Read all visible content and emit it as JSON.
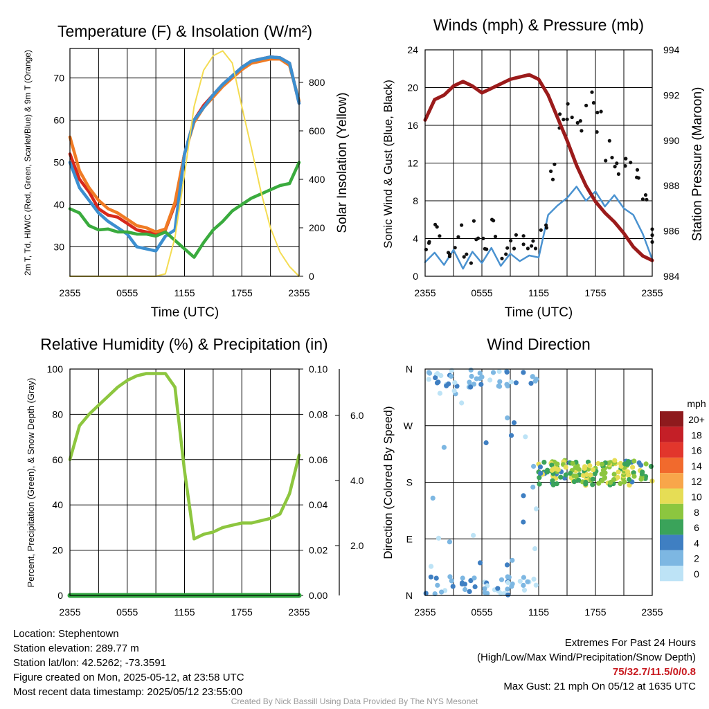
{
  "chart_data": [
    {
      "type": "line",
      "title": "Temperature (F) & Insolation (W/m²)",
      "xlabel": "Time (UTC)",
      "ylabel": "2m T, Td, HI/WC (Red, Green, Scarlet/Blue) & 9m T (Orange)",
      "y2label": "Solar Insolation (Yellow)",
      "ylim": [
        23,
        77
      ],
      "y2lim": [
        0,
        940
      ],
      "yticks": [
        "30",
        "40",
        "50",
        "60",
        "70"
      ],
      "y2ticks": [
        "0",
        "200",
        "400",
        "600",
        "800"
      ],
      "xticks": [
        "2355",
        "0555",
        "1155",
        "1755",
        "2355"
      ],
      "x": [
        0,
        1,
        2,
        3,
        4,
        5,
        6,
        7,
        8,
        9,
        10,
        11,
        12,
        13,
        14,
        15,
        16,
        17,
        18,
        19,
        20,
        21,
        22,
        23,
        24
      ],
      "series": [
        {
          "key": "t2m",
          "color": "#d8281c",
          "values": [
            52,
            46,
            43,
            39,
            37.5,
            37,
            35.5,
            34,
            33.5,
            33,
            34,
            40,
            52,
            60,
            63.5,
            66,
            68.5,
            70.5,
            72.5,
            74,
            74.5,
            75,
            74.8,
            73.5,
            64
          ]
        },
        {
          "key": "t9m",
          "color": "#f07b24",
          "values": [
            56,
            48,
            44,
            41,
            39,
            38,
            36.5,
            35,
            34.5,
            33.5,
            34.2,
            40.5,
            52,
            59.5,
            63,
            65.5,
            68,
            70,
            72,
            73.5,
            74,
            74.5,
            74.5,
            73,
            64.5
          ]
        },
        {
          "key": "hiwc",
          "color": "#3c8fd0",
          "values": [
            50,
            44,
            41,
            38,
            36,
            34.5,
            33,
            30,
            29.5,
            29,
            32.5,
            34,
            52,
            60,
            63,
            66,
            68.5,
            70.5,
            72.5,
            74,
            74.5,
            75,
            74.8,
            73.5,
            64
          ]
        },
        {
          "key": "td",
          "color": "#3aab3e",
          "values": [
            39,
            38,
            35,
            34,
            34.2,
            33.5,
            33.5,
            33,
            33,
            32.5,
            33.5,
            31.5,
            29.5,
            27.5,
            31,
            34,
            36,
            38.5,
            40,
            41.5,
            42.5,
            43.5,
            44.5,
            45,
            50
          ]
        },
        {
          "key": "solar",
          "axis": "y2",
          "color": "#f4dc52",
          "values": [
            0,
            0,
            0,
            0,
            0,
            0,
            0,
            0,
            0,
            0,
            10,
            160,
            420,
            700,
            850,
            910,
            930,
            880,
            700,
            530,
            350,
            200,
            100,
            40,
            0
          ]
        }
      ]
    },
    {
      "type": "line",
      "title": "Winds (mph) & Pressure (mb)",
      "xlabel": "Time (UTC)",
      "ylabel": "Sonic Wind & Gust (Blue, Black)",
      "y2label": "Station Pressure (Maroon)",
      "ylim": [
        0,
        24
      ],
      "y2lim": [
        984,
        994
      ],
      "yticks": [
        "0",
        "4",
        "8",
        "12",
        "16",
        "20",
        "24"
      ],
      "y2ticks": [
        "984",
        "986",
        "988",
        "990",
        "992",
        "994"
      ],
      "xticks": [
        "2355",
        "0555",
        "1155",
        "1755",
        "2355"
      ],
      "x": [
        0,
        1,
        2,
        3,
        4,
        5,
        6,
        7,
        8,
        9,
        10,
        11,
        12,
        13,
        14,
        15,
        16,
        17,
        18,
        19,
        20,
        21,
        22,
        23,
        24
      ],
      "series": [
        {
          "key": "wind",
          "color": "#4a92d0",
          "values": [
            1.5,
            2.5,
            1.2,
            2.8,
            0.8,
            2.6,
            1.4,
            3.0,
            1.1,
            2.4,
            1.6,
            2.2,
            2.0,
            6.5,
            7.5,
            8.3,
            9.5,
            8.0,
            9.0,
            7.4,
            8.6,
            7.2,
            6.5,
            4.5,
            1.8
          ]
        },
        {
          "key": "gust",
          "color": "#111111",
          "values": [
            3.5,
            4.5,
            3.2,
            4.2,
            2.2,
            4.6,
            3.3,
            4.9,
            2.6,
            4.0,
            3.4,
            3.9,
            4.2,
            11.5,
            16,
            17,
            15.5,
            19,
            16.5,
            13.5,
            12,
            13,
            11.5,
            7.5,
            4.0
          ]
        },
        {
          "key": "pressure",
          "axis": "y2",
          "color": "#9b1b1b",
          "values": [
            990.9,
            991.8,
            992.0,
            992.4,
            992.6,
            992.4,
            992.1,
            992.3,
            992.5,
            992.7,
            992.8,
            992.9,
            992.7,
            992.0,
            991.0,
            990.0,
            988.9,
            988.0,
            987.3,
            986.8,
            986.4,
            985.9,
            985.3,
            984.9,
            984.7
          ]
        }
      ]
    },
    {
      "type": "line",
      "title": "Relative Humidity (%) & Precipitation (in)",
      "ylabel": "Percent, Precipitation (Green), & Snow Depth (Gray)",
      "ylim": [
        0,
        100
      ],
      "y2lim": [
        0,
        0.1
      ],
      "yticks": [
        "0",
        "20",
        "40",
        "60",
        "80",
        "100"
      ],
      "y2ticks": [
        "0.00",
        "0.02",
        "0.04",
        "0.06",
        "0.08",
        "0.10"
      ],
      "y3ticks": [
        "2.0",
        "4.0",
        "6.0"
      ],
      "xticks": [
        "2355",
        "0555",
        "1155",
        "1755",
        "2355"
      ],
      "x": [
        0,
        1,
        2,
        3,
        4,
        5,
        6,
        7,
        8,
        9,
        10,
        11,
        12,
        13,
        14,
        15,
        16,
        17,
        18,
        19,
        20,
        21,
        22,
        23,
        24
      ],
      "series": [
        {
          "key": "rh",
          "color": "#8dc63f",
          "values": [
            60,
            75,
            80,
            84,
            88,
            92,
            95,
            97,
            98,
            98,
            98,
            92,
            55,
            25,
            27,
            28,
            30,
            31,
            32,
            32,
            33,
            34,
            36,
            45,
            62
          ]
        },
        {
          "key": "precip",
          "axis": "y2",
          "color": "#2fa33e",
          "values": [
            0,
            0,
            0,
            0,
            0,
            0,
            0,
            0,
            0,
            0,
            0,
            0,
            0,
            0,
            0,
            0,
            0,
            0,
            0,
            0,
            0,
            0,
            0,
            0,
            0
          ]
        }
      ]
    },
    {
      "type": "scatter",
      "title": "Wind Direction",
      "ylabel": "Direction (Colored By Speed)",
      "yticks": [
        "N",
        "E",
        "S",
        "W",
        "N"
      ],
      "xticks": [
        "2355",
        "0555",
        "1155",
        "1755",
        "2355"
      ],
      "ylim": [
        0,
        360
      ],
      "legend_title": "mph",
      "legend_labels": [
        "20+",
        "18",
        "16",
        "14",
        "12",
        "10",
        "8",
        "6",
        "4",
        "2",
        "0"
      ],
      "legend_colors": [
        "#8e1a1d",
        "#c41f27",
        "#e2362c",
        "#f16a2d",
        "#f8a64a",
        "#e6dd55",
        "#8cc63f",
        "#3aa35a",
        "#3f7fc2",
        "#7db7e2",
        "#bde3f6"
      ],
      "legend_placement": "right"
    }
  ],
  "info": {
    "location": "Location: Stephentown",
    "elevation": "Station elevation: 289.77 m",
    "latlon": "Station lat/lon: 42.5262; -73.3591",
    "created": "Figure created on Mon, 2025-05-12, at 23:58 UTC",
    "recent": "Most recent data timestamp: 2025/05/12 23:55:00"
  },
  "extremes": {
    "title": "Extremes For Past 24 Hours",
    "subtitle": "(High/Low/Max Wind/Precipitation/Snow Depth)",
    "values": "75/32.7/11.5/0/0.8",
    "gust": "Max Gust: 21 mph On 05/12 at 1635 UTC"
  },
  "credit": "Created By Nick Bassill Using Data Provided By The NYS Mesonet"
}
